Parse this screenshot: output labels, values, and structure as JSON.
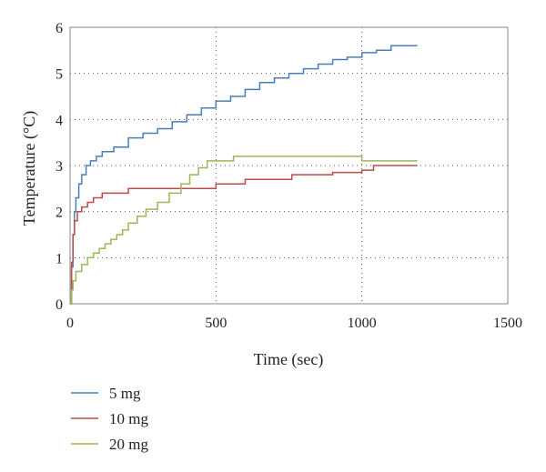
{
  "chart_data": {
    "type": "line",
    "xlabel": "Time (sec)",
    "ylabel": "Temperature (°C)",
    "xlim": [
      0,
      1500
    ],
    "ylim": [
      0,
      6
    ],
    "xticks": [
      0,
      500,
      1000,
      1500
    ],
    "yticks": [
      0,
      1,
      2,
      3,
      4,
      5,
      6
    ],
    "grid": "dotted",
    "legend_position": "bottom-left",
    "series": [
      {
        "name": "5 mg",
        "color": "#4a7ebb",
        "points": [
          [
            0,
            0
          ],
          [
            5,
            0.8
          ],
          [
            10,
            1.5
          ],
          [
            15,
            2.0
          ],
          [
            20,
            2.3
          ],
          [
            30,
            2.6
          ],
          [
            40,
            2.8
          ],
          [
            55,
            3.0
          ],
          [
            70,
            3.1
          ],
          [
            90,
            3.2
          ],
          [
            110,
            3.3
          ],
          [
            150,
            3.4
          ],
          [
            200,
            3.6
          ],
          [
            250,
            3.7
          ],
          [
            300,
            3.8
          ],
          [
            350,
            3.95
          ],
          [
            400,
            4.1
          ],
          [
            450,
            4.25
          ],
          [
            500,
            4.4
          ],
          [
            550,
            4.5
          ],
          [
            600,
            4.65
          ],
          [
            650,
            4.8
          ],
          [
            700,
            4.9
          ],
          [
            750,
            5.0
          ],
          [
            800,
            5.1
          ],
          [
            850,
            5.2
          ],
          [
            900,
            5.3
          ],
          [
            950,
            5.35
          ],
          [
            1000,
            5.45
          ],
          [
            1050,
            5.5
          ],
          [
            1100,
            5.6
          ],
          [
            1190,
            5.6
          ]
        ]
      },
      {
        "name": "10 mg",
        "color": "#be4b48",
        "points": [
          [
            0,
            0
          ],
          [
            5,
            0.9
          ],
          [
            10,
            1.5
          ],
          [
            15,
            1.8
          ],
          [
            25,
            2.0
          ],
          [
            40,
            2.1
          ],
          [
            60,
            2.2
          ],
          [
            80,
            2.3
          ],
          [
            110,
            2.4
          ],
          [
            160,
            2.4
          ],
          [
            200,
            2.5
          ],
          [
            300,
            2.5
          ],
          [
            500,
            2.6
          ],
          [
            600,
            2.7
          ],
          [
            700,
            2.7
          ],
          [
            760,
            2.8
          ],
          [
            900,
            2.85
          ],
          [
            1000,
            2.9
          ],
          [
            1040,
            3.0
          ],
          [
            1190,
            3.0
          ]
        ]
      },
      {
        "name": "20 mg",
        "color": "#98b954",
        "points": [
          [
            0,
            0
          ],
          [
            5,
            0.3
          ],
          [
            10,
            0.5
          ],
          [
            20,
            0.7
          ],
          [
            40,
            0.85
          ],
          [
            60,
            1.0
          ],
          [
            80,
            1.1
          ],
          [
            100,
            1.2
          ],
          [
            120,
            1.3
          ],
          [
            140,
            1.4
          ],
          [
            160,
            1.5
          ],
          [
            180,
            1.6
          ],
          [
            200,
            1.75
          ],
          [
            230,
            1.9
          ],
          [
            260,
            2.05
          ],
          [
            300,
            2.2
          ],
          [
            340,
            2.4
          ],
          [
            380,
            2.6
          ],
          [
            410,
            2.8
          ],
          [
            440,
            2.95
          ],
          [
            470,
            3.1
          ],
          [
            500,
            3.1
          ],
          [
            560,
            3.2
          ],
          [
            1000,
            3.2
          ],
          [
            1000,
            3.1
          ],
          [
            1190,
            3.1
          ]
        ]
      }
    ]
  }
}
